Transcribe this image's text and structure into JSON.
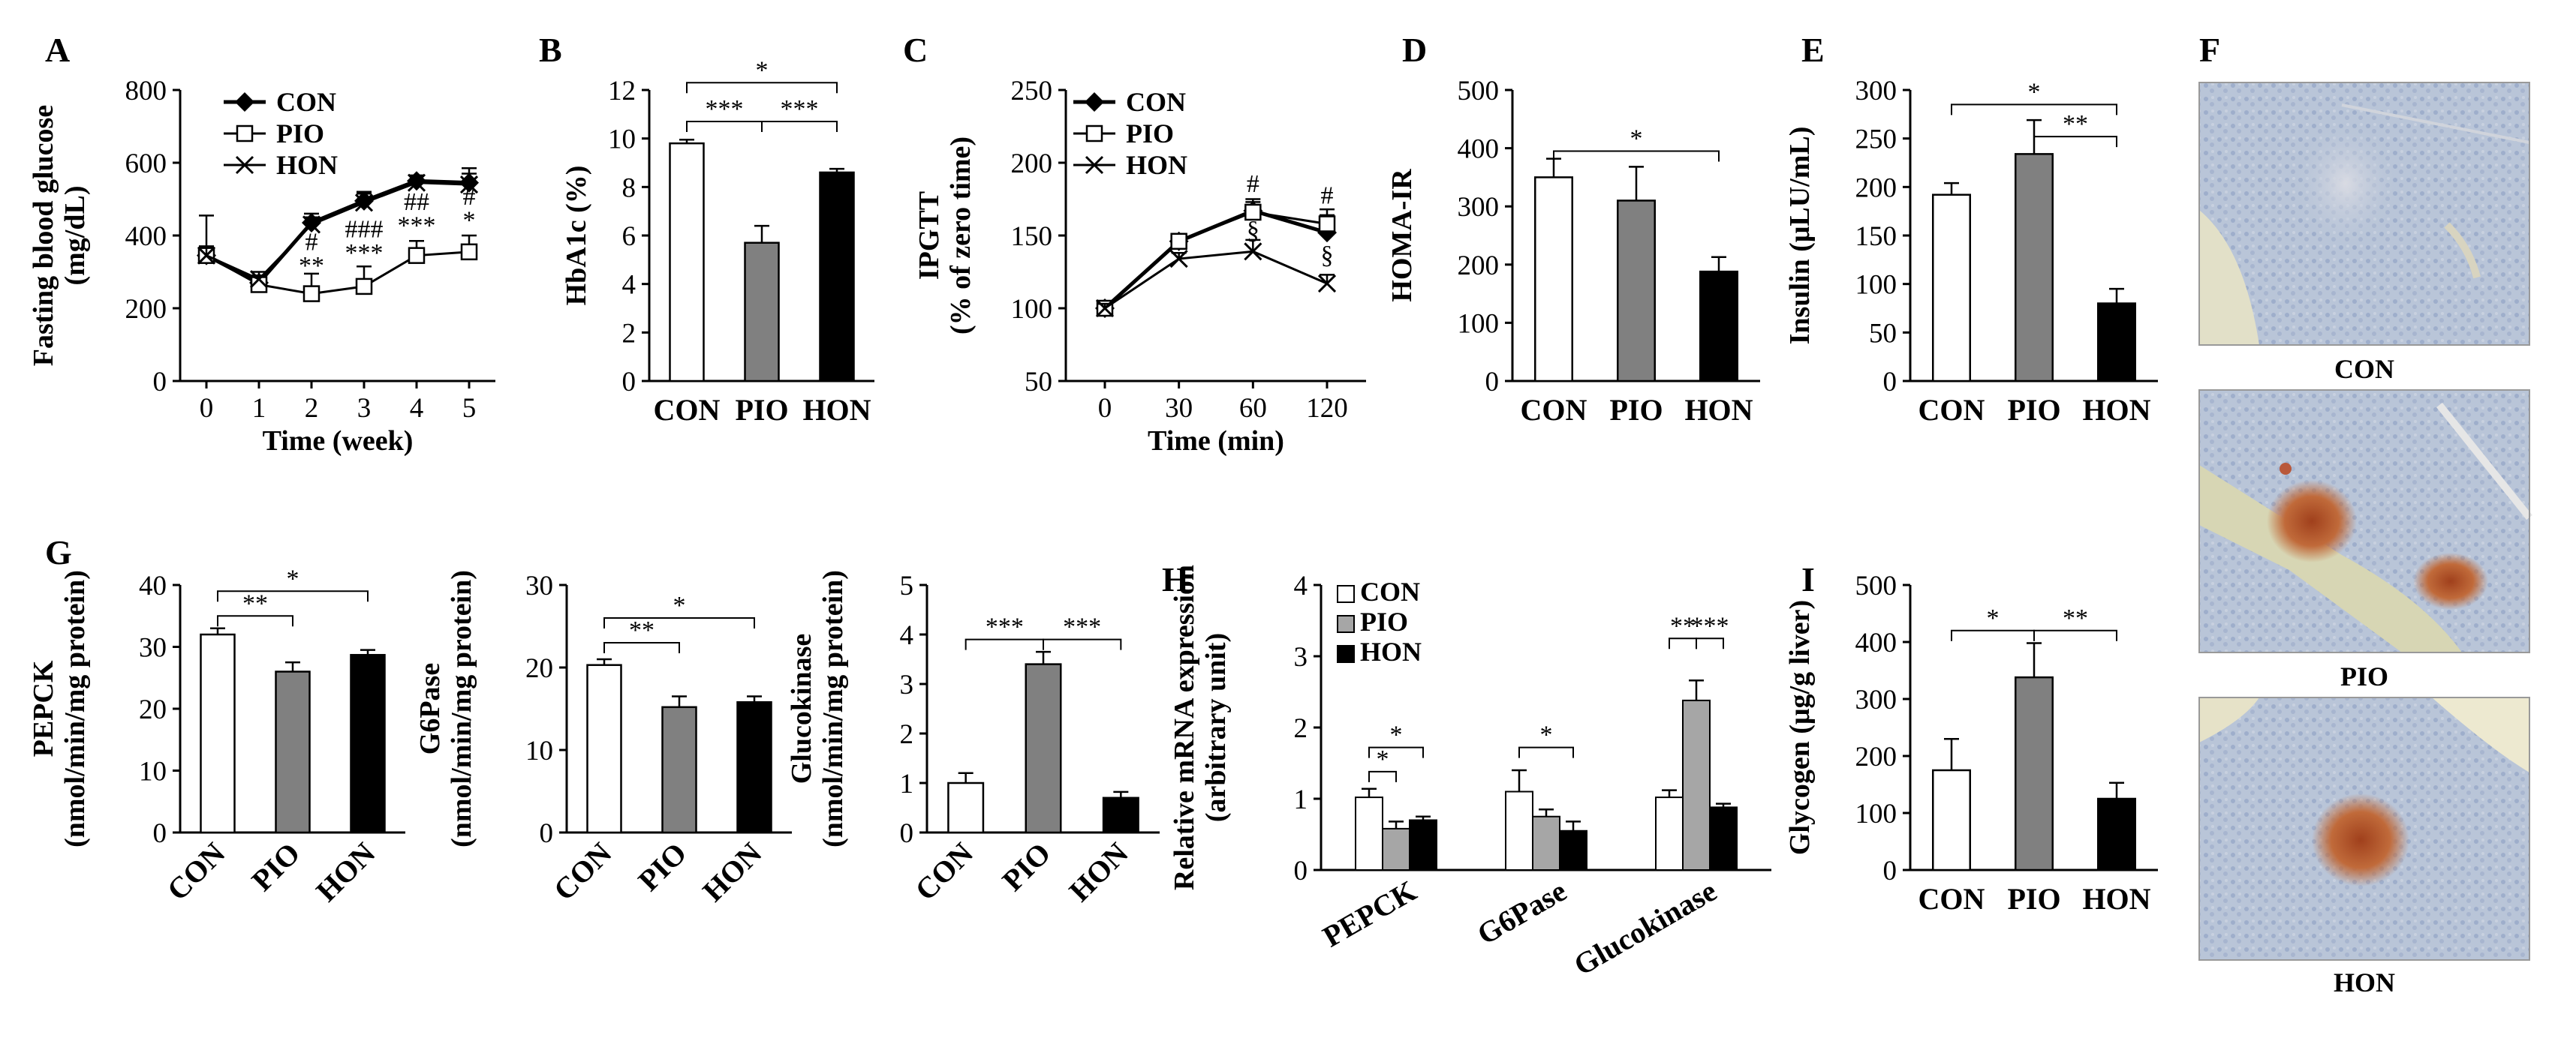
{
  "colors": {
    "CON": "#ffffff",
    "PIO": "#808080",
    "HON": "#000000",
    "PIO_mrna": "#a6a6a6",
    "line": "#000000"
  },
  "chart_data": [
    {
      "panel": "A",
      "type": "line",
      "ylabel_line1": "Fasting blood glucose",
      "ylabel_line2": "(mg/dL)",
      "xlabel": "Time (week)",
      "x": [
        0,
        1,
        2,
        3,
        4,
        5
      ],
      "xticks": [
        "0",
        "1",
        "2",
        "3",
        "4",
        "5"
      ],
      "ylim": [
        0,
        800
      ],
      "yticks": [
        "0",
        "200",
        "400",
        "600",
        "800"
      ],
      "series": [
        {
          "name": "CON",
          "marker": "diamond",
          "values": [
            345,
            270,
            435,
            495,
            550,
            545
          ],
          "err": [
            25,
            20,
            25,
            25,
            15,
            40
          ]
        },
        {
          "name": "PIO",
          "marker": "square",
          "values": [
            345,
            265,
            240,
            260,
            345,
            355
          ],
          "err": [
            110,
            25,
            55,
            55,
            40,
            45
          ]
        },
        {
          "name": "HON",
          "marker": "cross",
          "values": [
            345,
            280,
            430,
            490,
            545,
            540
          ],
          "err": [
            25,
            20,
            20,
            25,
            20,
            30
          ]
        }
      ],
      "legend": [
        "CON",
        "PIO",
        "HON"
      ],
      "annotations": [
        {
          "x": 2,
          "y": 295,
          "text": "**"
        },
        {
          "x": 2,
          "y": 360,
          "text": "#"
        },
        {
          "x": 3,
          "y": 330,
          "text": "***"
        },
        {
          "x": 3,
          "y": 395,
          "text": "###"
        },
        {
          "x": 4,
          "y": 405,
          "text": "***"
        },
        {
          "x": 4,
          "y": 470,
          "text": "##"
        },
        {
          "x": 5,
          "y": 420,
          "text": "*"
        },
        {
          "x": 5,
          "y": 485,
          "text": "#"
        }
      ]
    },
    {
      "panel": "B",
      "type": "bar",
      "ylabel": "HbA1c (%)",
      "categories": [
        "CON",
        "PIO",
        "HON"
      ],
      "values": [
        9.8,
        5.7,
        8.6
      ],
      "err": [
        0.15,
        0.7,
        0.15
      ],
      "ylim": [
        0,
        12
      ],
      "yticks": [
        "0",
        "2",
        "4",
        "6",
        "8",
        "10",
        "12"
      ],
      "significance": [
        {
          "from": 0,
          "to": 1,
          "y": 10.7,
          "text": "***"
        },
        {
          "from": 1,
          "to": 2,
          "y": 10.7,
          "text": "***"
        },
        {
          "from": 0,
          "to": 2,
          "y": 12.3,
          "text": "*"
        }
      ]
    },
    {
      "panel": "C",
      "type": "line",
      "ylabel_line1": "IPGTT",
      "ylabel_line2": "(% of zero time)",
      "xlabel": "Time (min)",
      "x": [
        0,
        30,
        60,
        120
      ],
      "xticks": [
        "0",
        "30",
        "60",
        "120"
      ],
      "ylim": [
        50,
        250
      ],
      "yticks": [
        "50",
        "100",
        "150",
        "200",
        "250"
      ],
      "series": [
        {
          "name": "CON",
          "marker": "diamond",
          "values": [
            100,
            146,
            167,
            152
          ],
          "err": [
            3,
            5,
            8,
            12
          ]
        },
        {
          "name": "PIO",
          "marker": "square",
          "values": [
            100,
            146,
            166,
            158
          ],
          "err": [
            3,
            5,
            7,
            10
          ]
        },
        {
          "name": "HON",
          "marker": "cross",
          "values": [
            100,
            134,
            139,
            117
          ],
          "err": [
            3,
            4,
            8,
            6
          ]
        }
      ],
      "legend": [
        "CON",
        "PIO",
        "HON"
      ],
      "annotations": [
        {
          "x": 60,
          "y": 180,
          "text": "#"
        },
        {
          "x": 60,
          "y": 148,
          "text": "§"
        },
        {
          "x": 120,
          "y": 172,
          "text": "#"
        },
        {
          "x": 120,
          "y": 131,
          "text": "§"
        }
      ]
    },
    {
      "panel": "D",
      "type": "bar",
      "ylabel": "HOMA-IR",
      "categories": [
        "CON",
        "PIO",
        "HON"
      ],
      "values": [
        350,
        310,
        188
      ],
      "err": [
        32,
        58,
        25
      ],
      "ylim": [
        0,
        500
      ],
      "yticks": [
        "0",
        "100",
        "200",
        "300",
        "400",
        "500"
      ],
      "significance": [
        {
          "from": 0,
          "to": 2,
          "y": 395,
          "text": "*"
        }
      ]
    },
    {
      "panel": "E",
      "type": "bar",
      "ylabel": "Insulin (μLU/mL)",
      "categories": [
        "CON",
        "PIO",
        "HON"
      ],
      "values": [
        192,
        234,
        80
      ],
      "err": [
        12,
        35,
        15
      ],
      "ylim": [
        0,
        300
      ],
      "yticks": [
        "0",
        "50",
        "100",
        "150",
        "200",
        "250",
        "300"
      ],
      "significance": [
        {
          "from": 1,
          "to": 2,
          "y": 252,
          "text": "**"
        },
        {
          "from": 0,
          "to": 2,
          "y": 285,
          "text": "*"
        }
      ]
    },
    {
      "panel": "G",
      "type": "bar",
      "ylabel_line1": "PEPCK",
      "ylabel_line2": "(nmol/min/mg protein)",
      "categories": [
        "CON",
        "PIO",
        "HON"
      ],
      "values": [
        32,
        26,
        28.7
      ],
      "err": [
        1,
        1.5,
        0.8
      ],
      "ylim": [
        0,
        40
      ],
      "yticks": [
        "0",
        "10",
        "20",
        "30",
        "40"
      ],
      "significance": [
        {
          "from": 0,
          "to": 1,
          "y": 35,
          "text": "**"
        },
        {
          "from": 0,
          "to": 2,
          "y": 39,
          "text": "*"
        }
      ]
    },
    {
      "panel": "G2",
      "type": "bar",
      "ylabel_line1": "G6Pase",
      "ylabel_line2": "(nmol/min/mg protein)",
      "categories": [
        "CON",
        "PIO",
        "HON"
      ],
      "values": [
        20.3,
        15.2,
        15.8
      ],
      "err": [
        0.7,
        1.3,
        0.7
      ],
      "ylim": [
        0,
        30
      ],
      "yticks": [
        "0",
        "10",
        "20",
        "30"
      ],
      "significance": [
        {
          "from": 0,
          "to": 1,
          "y": 23,
          "text": "**"
        },
        {
          "from": 0,
          "to": 2,
          "y": 26,
          "text": "*"
        }
      ]
    },
    {
      "panel": "G3",
      "type": "bar",
      "ylabel_line1": "Glucokinase",
      "ylabel_line2": "(nmol/min/mg protein)",
      "categories": [
        "CON",
        "PIO",
        "HON"
      ],
      "values": [
        1.0,
        3.4,
        0.7
      ],
      "err": [
        0.2,
        0.25,
        0.12
      ],
      "ylim": [
        0,
        5
      ],
      "yticks": [
        "0",
        "1",
        "2",
        "3",
        "4",
        "5"
      ],
      "significance": [
        {
          "from": 0,
          "to": 1,
          "y": 3.9,
          "text": "***"
        },
        {
          "from": 1,
          "to": 2,
          "y": 3.9,
          "text": "***"
        }
      ]
    },
    {
      "panel": "H",
      "type": "grouped-bar",
      "ylabel_line1": "Relative mRNA expression",
      "ylabel_line2": "(arbitrary unit)",
      "categories": [
        "PEPCK",
        "G6Pase",
        "Glucokinase"
      ],
      "series": [
        {
          "name": "CON",
          "values": [
            1.02,
            1.1,
            1.02
          ],
          "err": [
            0.12,
            0.3,
            0.1
          ]
        },
        {
          "name": "PIO",
          "values": [
            0.58,
            0.75,
            2.38
          ],
          "err": [
            0.1,
            0.1,
            0.28
          ]
        },
        {
          "name": "HON",
          "values": [
            0.7,
            0.55,
            0.88
          ],
          "err": [
            0.05,
            0.13,
            0.05
          ]
        }
      ],
      "legend": [
        "CON",
        "PIO",
        "HON"
      ],
      "ylim": [
        0,
        4
      ],
      "yticks": [
        "0",
        "1",
        "2",
        "3",
        "4"
      ],
      "significance": [
        {
          "group": 0,
          "from": 0,
          "to": 1,
          "y": 1.38,
          "text": "*"
        },
        {
          "group": 0,
          "from": 0,
          "to": 2,
          "y": 1.72,
          "text": "*"
        },
        {
          "group": 1,
          "from": 0,
          "to": 2,
          "y": 1.72,
          "text": "*"
        },
        {
          "group": 2,
          "from": 0,
          "to": 1,
          "y": 3.25,
          "text": "**"
        },
        {
          "group": 2,
          "from": 1,
          "to": 2,
          "y": 3.25,
          "text": "***"
        }
      ]
    },
    {
      "panel": "I",
      "type": "bar",
      "ylabel": "Glycogen (μg/g liver)",
      "categories": [
        "CON",
        "PIO",
        "HON"
      ],
      "values": [
        175,
        338,
        125
      ],
      "err": [
        55,
        60,
        28
      ],
      "ylim": [
        0,
        500
      ],
      "yticks": [
        "0",
        "100",
        "200",
        "300",
        "400",
        "500"
      ],
      "significance": [
        {
          "from": 0,
          "to": 1,
          "y": 420,
          "text": "*"
        },
        {
          "from": 1,
          "to": 2,
          "y": 420,
          "text": "**"
        }
      ]
    }
  ],
  "panel_f": {
    "label": "F",
    "captions": [
      "CON",
      "PIO",
      "HON"
    ]
  },
  "panel_labels": {
    "A": "A",
    "B": "B",
    "C": "C",
    "D": "D",
    "E": "E",
    "F": "F",
    "G": "G",
    "H": "H",
    "I": "I"
  }
}
